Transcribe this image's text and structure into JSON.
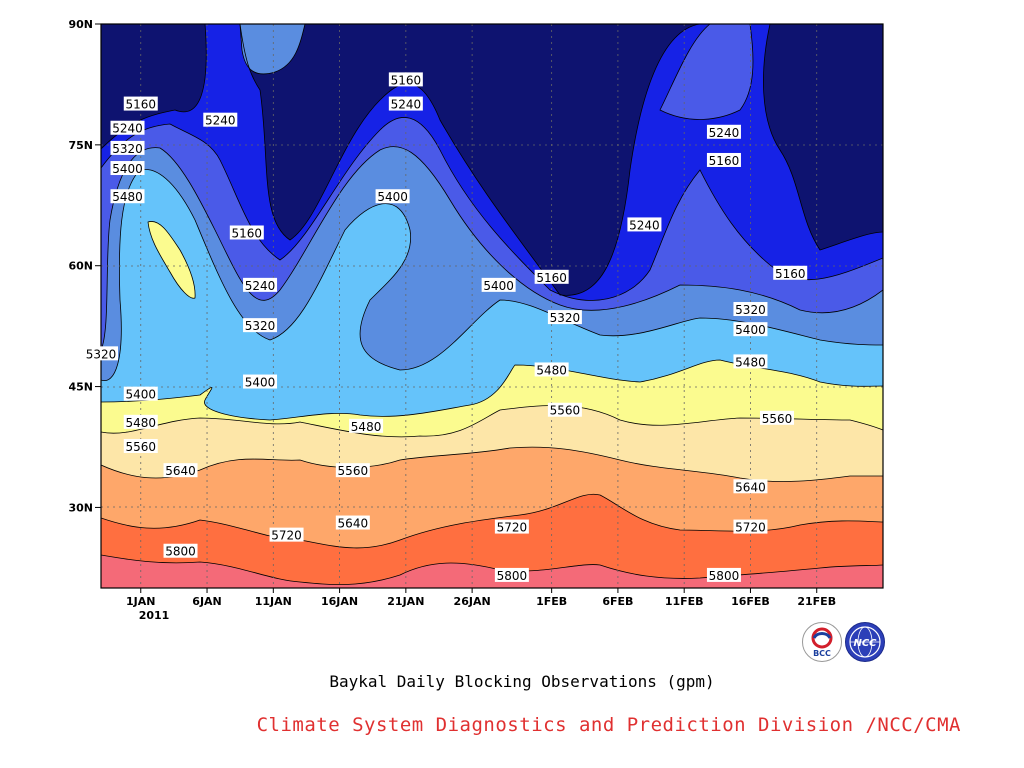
{
  "chart_data": {
    "type": "contour",
    "title": "Baykal Daily Blocking Observations (gpm)",
    "x_tick_labels": [
      "1JAN",
      "6JAN",
      "11JAN",
      "16JAN",
      "21JAN",
      "26JAN",
      "1FEB",
      "6FEB",
      "11FEB",
      "16FEB",
      "21FEB"
    ],
    "x_year_label": "2011",
    "x_range": [
      "2010-12-29",
      "2011-02-26"
    ],
    "y_tick_labels": [
      "90N",
      "75N",
      "60N",
      "45N",
      "30N"
    ],
    "y_range": [
      20,
      90
    ],
    "grid": true,
    "contour_levels": [
      5160,
      5240,
      5320,
      5400,
      5480,
      5560,
      5640,
      5720,
      5800
    ],
    "fill_colors": [
      "#0e1370",
      "#1622e6",
      "#4a5ae8",
      "#5a8de0",
      "#65c3fa",
      "#fbfb8f",
      "#fde6a8",
      "#fea76a",
      "#ff6f40",
      "#f46a78"
    ],
    "contour_labels": [
      {
        "text": "5160",
        "x": "2011-01-01",
        "y": 80
      },
      {
        "text": "5240",
        "x": "2010-12-31",
        "y": 77
      },
      {
        "text": "5320",
        "x": "2010-12-31",
        "y": 74.5
      },
      {
        "text": "5400",
        "x": "2010-12-31",
        "y": 72
      },
      {
        "text": "5480",
        "x": "2010-12-31",
        "y": 68.5
      },
      {
        "text": "5240",
        "x": "2011-01-07",
        "y": 78
      },
      {
        "text": "5160",
        "x": "2011-01-09",
        "y": 64
      },
      {
        "text": "5240",
        "x": "2011-01-10",
        "y": 57.5
      },
      {
        "text": "5320",
        "x": "2011-01-10",
        "y": 52.5
      },
      {
        "text": "5400",
        "x": "2011-01-10",
        "y": 45.5
      },
      {
        "text": "5320",
        "x": "2010-12-29",
        "y": 49
      },
      {
        "text": "5400",
        "x": "2011-01-01",
        "y": 44
      },
      {
        "text": "5480",
        "x": "2011-01-01",
        "y": 40.5
      },
      {
        "text": "5560",
        "x": "2011-01-01",
        "y": 37.5
      },
      {
        "text": "5640",
        "x": "2011-01-04",
        "y": 34.5
      },
      {
        "text": "5800",
        "x": "2011-01-04",
        "y": 24.5
      },
      {
        "text": "5720",
        "x": "2011-01-12",
        "y": 26.5
      },
      {
        "text": "5640",
        "x": "2011-01-17",
        "y": 28
      },
      {
        "text": "5560",
        "x": "2011-01-17",
        "y": 34.5
      },
      {
        "text": "5480",
        "x": "2011-01-18",
        "y": 40
      },
      {
        "text": "5400",
        "x": "2011-01-20",
        "y": 68.5
      },
      {
        "text": "5160",
        "x": "2011-01-21",
        "y": 83
      },
      {
        "text": "5240",
        "x": "2011-01-21",
        "y": 80
      },
      {
        "text": "5400",
        "x": "2011-01-28",
        "y": 57.5
      },
      {
        "text": "5720",
        "x": "2011-01-29",
        "y": 27.5
      },
      {
        "text": "5800",
        "x": "2011-01-29",
        "y": 21.5
      },
      {
        "text": "5160",
        "x": "2011-02-01",
        "y": 58.5
      },
      {
        "text": "5480",
        "x": "2011-02-01",
        "y": 47
      },
      {
        "text": "5320",
        "x": "2011-02-02",
        "y": 53.5
      },
      {
        "text": "5560",
        "x": "2011-02-02",
        "y": 42
      },
      {
        "text": "5240",
        "x": "2011-02-08",
        "y": 65
      },
      {
        "text": "5240",
        "x": "2011-02-14",
        "y": 76.5
      },
      {
        "text": "5160",
        "x": "2011-02-14",
        "y": 73
      },
      {
        "text": "5800",
        "x": "2011-02-14",
        "y": 21.5
      },
      {
        "text": "5320",
        "x": "2011-02-16",
        "y": 54.5
      },
      {
        "text": "5400",
        "x": "2011-02-16",
        "y": 52
      },
      {
        "text": "5480",
        "x": "2011-02-16",
        "y": 48
      },
      {
        "text": "5640",
        "x": "2011-02-16",
        "y": 32.5
      },
      {
        "text": "5720",
        "x": "2011-02-16",
        "y": 27.5
      },
      {
        "text": "5560",
        "x": "2011-02-18",
        "y": 41
      },
      {
        "text": "5160",
        "x": "2011-02-19",
        "y": 59
      }
    ]
  },
  "footer_text": "Climate System Diagnostics and Prediction Division /NCC/CMA",
  "logos": [
    {
      "name": "bcc-logo",
      "text": "BCC"
    },
    {
      "name": "ncc-logo",
      "text": "NCC"
    }
  ]
}
